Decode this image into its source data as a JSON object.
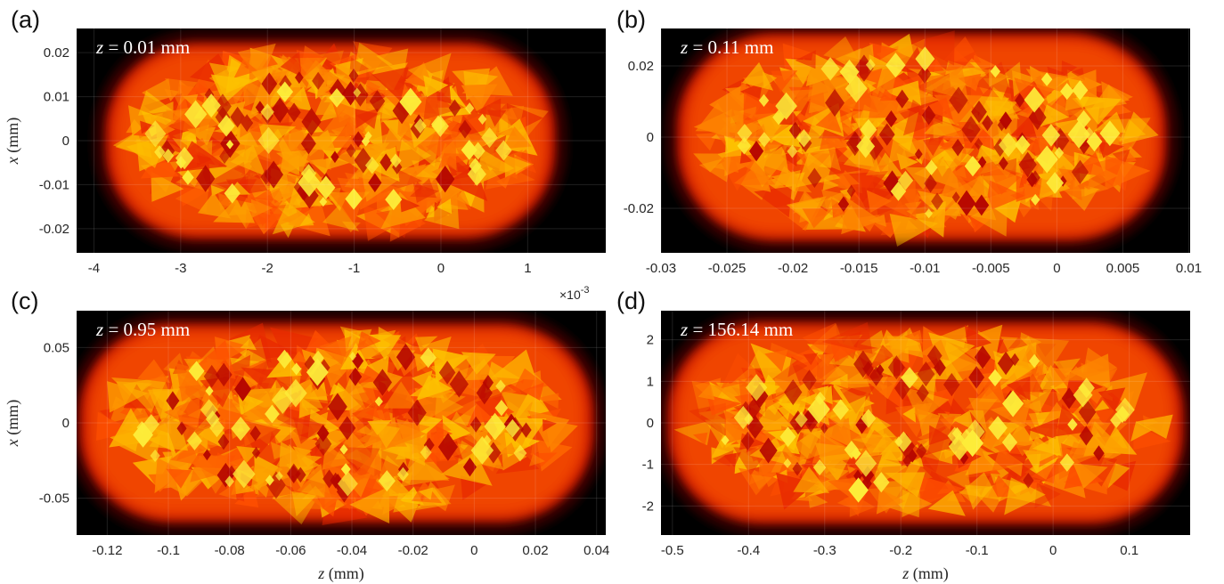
{
  "figure": {
    "colormap": "hot",
    "background": "#000000",
    "colors": {
      "dark": "#000000",
      "red": "#d01000",
      "orange": "#ff8000",
      "yellow": "#ffff40"
    }
  },
  "chart_data": [
    {
      "type": "heatmap",
      "panel": "(a)",
      "annotation_var": "z",
      "annotation_val": " = 0.01 mm",
      "xlabel": "",
      "ylabel": "x (mm)",
      "xlabel_var": "",
      "xlabel_unit": "",
      "ylabel_var": "x",
      "ylabel_unit": " (mm)",
      "xlim": [
        -4.2,
        1.9
      ],
      "ylim": [
        -0.0255,
        0.0255
      ],
      "xticks": [
        -4,
        -3,
        -2,
        -1,
        0,
        1
      ],
      "xtick_labels": [
        "-4",
        "-3",
        "-2",
        "-1",
        "0",
        "1"
      ],
      "yticks": [
        0.02,
        0.01,
        0,
        -0.01,
        -0.02
      ],
      "ytick_labels": [
        "0.02",
        "0.01",
        "0",
        "-0.01",
        "-0.02"
      ],
      "x_exponent": "×10",
      "x_exponent_power": "-3",
      "blob_extent": {
        "x": [
          -3.9,
          1.35
        ],
        "y": [
          -0.023,
          0.023
        ]
      },
      "grid": true
    },
    {
      "type": "heatmap",
      "panel": "(b)",
      "annotation_var": "z",
      "annotation_val": " = 0.11 mm",
      "xlabel": "",
      "ylabel": "",
      "xlabel_var": "",
      "xlabel_unit": "",
      "ylabel_var": "",
      "ylabel_unit": "",
      "xlim": [
        -0.03,
        0.0101
      ],
      "ylim": [
        -0.0325,
        0.0305
      ],
      "xticks": [
        -0.03,
        -0.025,
        -0.02,
        -0.015,
        -0.01,
        -0.005,
        0,
        0.005,
        0.01
      ],
      "xtick_labels": [
        "-0.03",
        "-0.025",
        "-0.02",
        "-0.015",
        "-0.01",
        "-0.005",
        "0",
        "0.005",
        "0.01"
      ],
      "yticks": [
        0.02,
        0,
        -0.02
      ],
      "ytick_labels": [
        "0.02",
        "0",
        "-0.02"
      ],
      "blob_extent": {
        "x": [
          -0.029,
          0.0085
        ],
        "y": [
          -0.03,
          0.03
        ]
      },
      "grid": true
    },
    {
      "type": "heatmap",
      "panel": "(c)",
      "annotation_var": "z",
      "annotation_val": " = 0.95 mm",
      "xlabel": "z (mm)",
      "ylabel": "x (mm)",
      "xlabel_var": "z",
      "xlabel_unit": " (mm)",
      "ylabel_var": "x",
      "ylabel_unit": " (mm)",
      "xlim": [
        -0.13,
        0.043
      ],
      "ylim": [
        -0.0745,
        0.0745
      ],
      "xticks": [
        -0.12,
        -0.1,
        -0.08,
        -0.06,
        -0.04,
        -0.02,
        0,
        0.02,
        0.04
      ],
      "xtick_labels": [
        "-0.12",
        "-0.1",
        "-0.08",
        "-0.06",
        "-0.04",
        "-0.02",
        "0",
        "0.02",
        "0.04"
      ],
      "yticks": [
        0.05,
        0,
        -0.05
      ],
      "ytick_labels": [
        "0.05",
        "0",
        "-0.05"
      ],
      "blob_extent": {
        "x": [
          -0.13,
          0.04
        ],
        "y": [
          -0.068,
          0.068
        ]
      },
      "grid": true
    },
    {
      "type": "heatmap",
      "panel": "(d)",
      "annotation_var": "z",
      "annotation_val": " = 156.14 mm",
      "xlabel": "z (mm)",
      "ylabel": "",
      "xlabel_var": "z",
      "xlabel_unit": " (mm)",
      "ylabel_var": "",
      "ylabel_unit": "",
      "xlim": [
        -0.515,
        0.18
      ],
      "ylim": [
        -2.7,
        2.7
      ],
      "xticks": [
        -0.5,
        -0.4,
        -0.3,
        -0.2,
        -0.1,
        0,
        0.1
      ],
      "xtick_labels": [
        "-0.5",
        "-0.4",
        "-0.3",
        "-0.2",
        "-0.1",
        "0",
        "0.1"
      ],
      "yticks": [
        2,
        1,
        0,
        -1,
        -2
      ],
      "ytick_labels": [
        "2",
        "1",
        "0",
        "-1",
        "-2"
      ],
      "blob_extent": {
        "x": [
          -0.51,
          0.175
        ],
        "y": [
          -2.5,
          2.5
        ]
      },
      "grid": true
    }
  ]
}
